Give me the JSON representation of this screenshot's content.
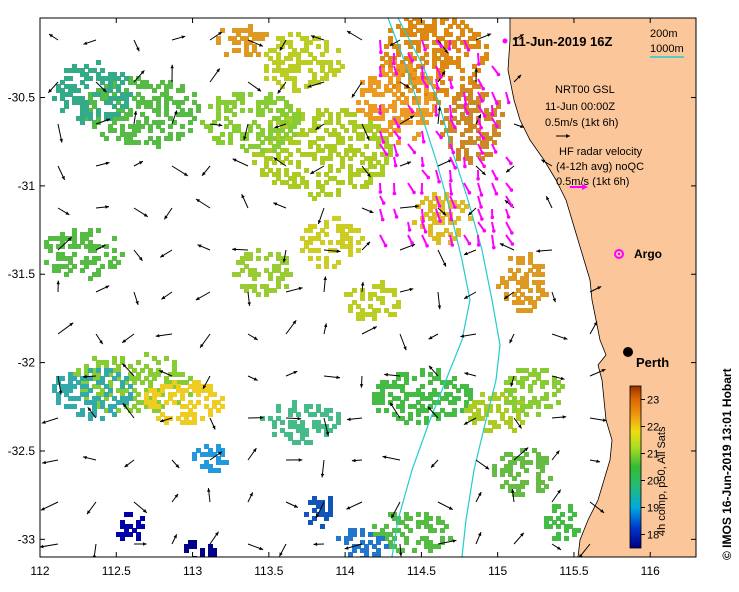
{
  "map": {
    "title": "11-Jun-2019 16Z",
    "x_ticks": [
      "112",
      "112.5",
      "113",
      "113.5",
      "114",
      "114.5",
      "115",
      "115.5",
      "116"
    ],
    "y_ticks": [
      "-30.5",
      "-31",
      "-31.5",
      "-32",
      "-32.5",
      "-33"
    ],
    "x_tick_values": [
      112,
      112.5,
      113,
      113.5,
      114,
      114.5,
      115,
      115.5,
      116
    ],
    "y_tick_values": [
      -30.5,
      -31,
      -31.5,
      -32,
      -32.5,
      -33
    ],
    "lon_range": [
      112,
      116.3
    ],
    "lat_range": [
      -33.1,
      -30.05
    ],
    "land_color": "#fbc79a",
    "isobath_color": "#22cccc"
  },
  "legend": {
    "isobath_200": "200m",
    "isobath_1000": "1000m",
    "model_name": "NRT00 GSL",
    "model_time": "11-Jun 00:00Z",
    "model_scale": "0.5m/s (1kt 6h)",
    "radar_line1": "HF radar velocity",
    "radar_line2": "(4-12h avg) noQC",
    "radar_scale": "0.5m/s (1kt 6h)",
    "argo_label": "Argo",
    "argo_color": "#ff00ff",
    "radar_arrow_color": "#ff00ff"
  },
  "places": {
    "city": "Perth"
  },
  "colorbar": {
    "label": "4h comp, p50, All Sats",
    "ticks": [
      "23",
      "22",
      "21",
      "20",
      "19",
      "18"
    ],
    "tick_values": [
      23,
      22,
      21,
      20,
      19,
      18
    ],
    "range": [
      17.5,
      23.5
    ]
  },
  "credit": "© IMOS 16-Jun-2019 13:01 Hobart"
}
